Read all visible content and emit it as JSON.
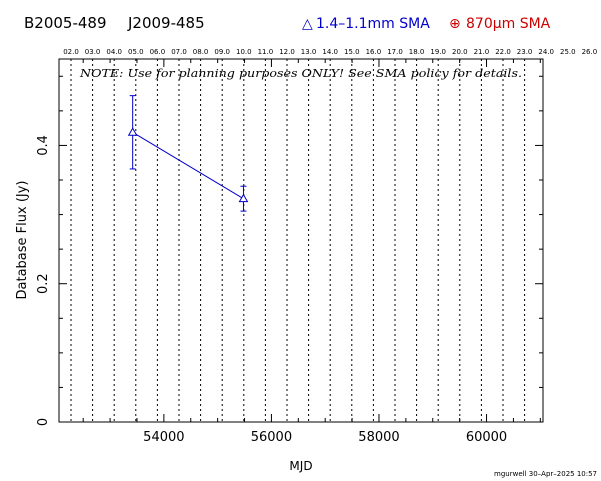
{
  "chart_data": {
    "type": "scatter",
    "header_left": "B2005-489",
    "header_mid": "J2009-485",
    "legend": [
      {
        "symbol": "△",
        "label": "1.4–1.1mm SMA",
        "color": "#0000cc"
      },
      {
        "symbol": "⊕",
        "label": "870μm SMA",
        "color": "#cc0000"
      }
    ],
    "note": "NOTE: Use for planning purposes ONLY! See SMA policy for details.",
    "xlabel": "MJD",
    "ylabel": "Database Flux (Jy)",
    "footer": "mgurwell 30–Apr–2025 10:57",
    "xlim": [
      52050,
      61050
    ],
    "ylim": [
      0,
      0.525
    ],
    "x_ticks": [
      54000,
      56000,
      58000,
      60000
    ],
    "y_ticks": [
      0,
      0.2,
      0.4
    ],
    "y_tick_labels": [
      "0",
      "0.2",
      "0.4"
    ],
    "top_axis_labels": [
      "02.0",
      "03.0",
      "04.0",
      "05.0",
      "06.0",
      "07.0",
      "08.0",
      "09.0",
      "10.0",
      "11.0",
      "12.0",
      "13.0",
      "14.0",
      "15.0",
      "16.0",
      "17.0",
      "18.0",
      "19.0",
      "20.0",
      "21.0",
      "22.0",
      "23.0",
      "24.0",
      "25.0",
      "26.0"
    ],
    "series": [
      {
        "name": "1.4–1.1mm SMA",
        "color": "#0000cc",
        "points": [
          {
            "x": 53420,
            "y": 0.419,
            "err": 0.053
          },
          {
            "x": 55480,
            "y": 0.323,
            "err": 0.018
          }
        ]
      }
    ]
  }
}
